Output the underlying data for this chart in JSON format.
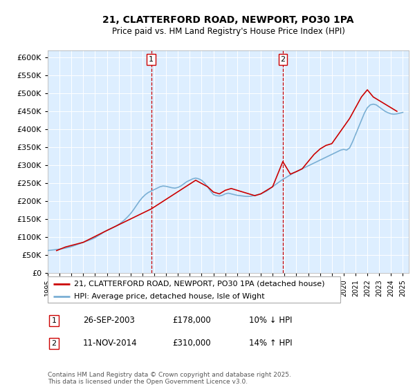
{
  "title": "21, CLATTERFORD ROAD, NEWPORT, PO30 1PA",
  "subtitle": "Price paid vs. HM Land Registry's House Price Index (HPI)",
  "ylim": [
    0,
    620000
  ],
  "yticks": [
    0,
    50000,
    100000,
    150000,
    200000,
    250000,
    300000,
    350000,
    400000,
    450000,
    500000,
    550000,
    600000
  ],
  "xlim_start": 1995.0,
  "xlim_end": 2025.5,
  "transaction1": {
    "date": "26-SEP-2003",
    "price": 178000,
    "hpi_change": "10% ↓ HPI",
    "label": "1"
  },
  "transaction2": {
    "date": "11-NOV-2014",
    "price": 310000,
    "hpi_change": "14% ↑ HPI",
    "label": "2"
  },
  "transaction1_x": 2003.74,
  "transaction2_x": 2014.86,
  "red_color": "#cc0000",
  "blue_color": "#7aafd4",
  "dashed_color": "#cc0000",
  "bg_color": "#ddeeff",
  "legend_label_red": "21, CLATTERFORD ROAD, NEWPORT, PO30 1PA (detached house)",
  "legend_label_blue": "HPI: Average price, detached house, Isle of Wight",
  "footer": "Contains HM Land Registry data © Crown copyright and database right 2025.\nThis data is licensed under the Open Government Licence v3.0.",
  "hpi_series_x": [
    1995.0,
    1995.25,
    1995.5,
    1995.75,
    1996.0,
    1996.25,
    1996.5,
    1996.75,
    1997.0,
    1997.25,
    1997.5,
    1997.75,
    1998.0,
    1998.25,
    1998.5,
    1998.75,
    1999.0,
    1999.25,
    1999.5,
    1999.75,
    2000.0,
    2000.25,
    2000.5,
    2000.75,
    2001.0,
    2001.25,
    2001.5,
    2001.75,
    2002.0,
    2002.25,
    2002.5,
    2002.75,
    2003.0,
    2003.25,
    2003.5,
    2003.75,
    2004.0,
    2004.25,
    2004.5,
    2004.75,
    2005.0,
    2005.25,
    2005.5,
    2005.75,
    2006.0,
    2006.25,
    2006.5,
    2006.75,
    2007.0,
    2007.25,
    2007.5,
    2007.75,
    2008.0,
    2008.25,
    2008.5,
    2008.75,
    2009.0,
    2009.25,
    2009.5,
    2009.75,
    2010.0,
    2010.25,
    2010.5,
    2010.75,
    2011.0,
    2011.25,
    2011.5,
    2011.75,
    2012.0,
    2012.25,
    2012.5,
    2012.75,
    2013.0,
    2013.25,
    2013.5,
    2013.75,
    2014.0,
    2014.25,
    2014.5,
    2014.75,
    2015.0,
    2015.25,
    2015.5,
    2015.75,
    2016.0,
    2016.25,
    2016.5,
    2016.75,
    2017.0,
    2017.25,
    2017.5,
    2017.75,
    2018.0,
    2018.25,
    2018.5,
    2018.75,
    2019.0,
    2019.25,
    2019.5,
    2019.75,
    2020.0,
    2020.25,
    2020.5,
    2020.75,
    2021.0,
    2021.25,
    2021.5,
    2021.75,
    2022.0,
    2022.25,
    2022.5,
    2022.75,
    2023.0,
    2023.25,
    2023.5,
    2023.75,
    2024.0,
    2024.25,
    2024.5,
    2024.75,
    2025.0
  ],
  "hpi_series_y": [
    62000,
    63000,
    64000,
    65000,
    66000,
    67500,
    69000,
    71000,
    73000,
    76000,
    79000,
    82000,
    85000,
    88000,
    91000,
    94000,
    98000,
    103000,
    108000,
    114000,
    118000,
    122000,
    126000,
    130000,
    135000,
    141000,
    148000,
    156000,
    165000,
    176000,
    188000,
    200000,
    210000,
    218000,
    224000,
    228000,
    232000,
    236000,
    240000,
    242000,
    241000,
    239000,
    237000,
    236000,
    238000,
    242000,
    248000,
    254000,
    258000,
    262000,
    264000,
    262000,
    258000,
    250000,
    240000,
    228000,
    218000,
    215000,
    214000,
    216000,
    220000,
    222000,
    220000,
    218000,
    216000,
    215000,
    214000,
    213000,
    213000,
    214000,
    216000,
    218000,
    220000,
    224000,
    228000,
    234000,
    240000,
    246000,
    252000,
    258000,
    263000,
    268000,
    273000,
    278000,
    282000,
    286000,
    290000,
    294000,
    298000,
    302000,
    306000,
    310000,
    314000,
    318000,
    322000,
    326000,
    330000,
    334000,
    338000,
    342000,
    344000,
    342000,
    348000,
    365000,
    385000,
    405000,
    425000,
    445000,
    460000,
    468000,
    470000,
    468000,
    462000,
    456000,
    450000,
    446000,
    443000,
    442000,
    443000,
    445000,
    447000
  ],
  "price_series_x": [
    1995.75,
    1996.5,
    1998.0,
    2000.0,
    2003.74,
    2007.5,
    2008.5,
    2009.0,
    2009.5,
    2010.0,
    2010.5,
    2011.0,
    2011.5,
    2012.5,
    2013.0,
    2013.5,
    2014.0,
    2014.86,
    2015.5,
    2016.0,
    2016.5,
    2017.5,
    2018.0,
    2018.5,
    2019.0,
    2020.5,
    2021.0,
    2021.5,
    2022.0,
    2022.5,
    2023.0,
    2023.5,
    2024.0,
    2024.5
  ],
  "price_series_y": [
    62000,
    72000,
    85000,
    118000,
    178000,
    258000,
    240000,
    225000,
    220000,
    230000,
    235000,
    230000,
    225000,
    215000,
    220000,
    230000,
    240000,
    310000,
    275000,
    282000,
    290000,
    330000,
    345000,
    355000,
    360000,
    430000,
    460000,
    490000,
    510000,
    490000,
    480000,
    470000,
    460000,
    450000
  ]
}
